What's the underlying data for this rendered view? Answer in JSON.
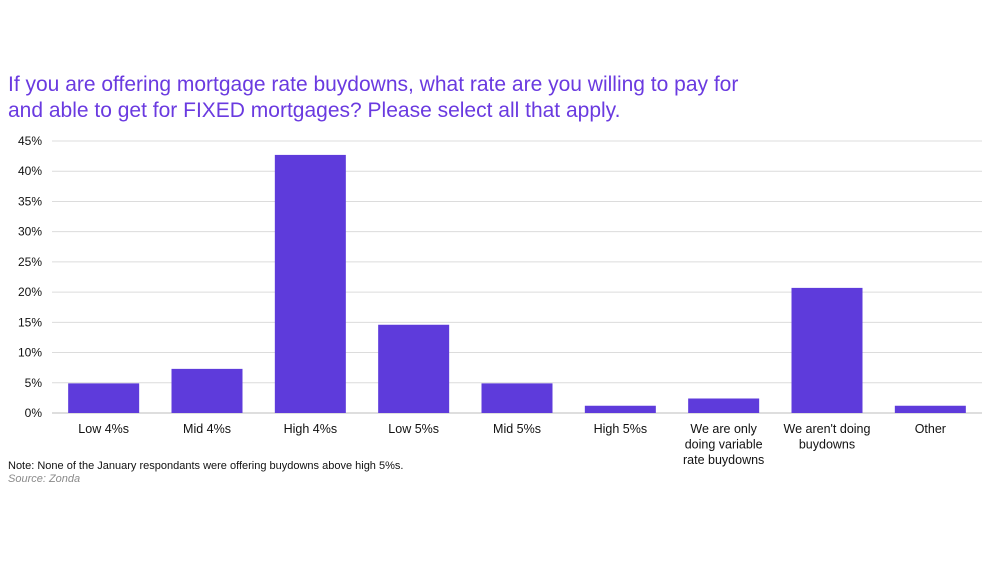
{
  "chart_data": {
    "type": "bar",
    "title_lines": [
      "If you are offering mortgage rate buydowns, what rate are you willing to pay for",
      "and able to get for FIXED  mortgages? Please select all that apply."
    ],
    "categories": [
      [
        "Low 4%s"
      ],
      [
        "Mid 4%s"
      ],
      [
        "High 4%s"
      ],
      [
        "Low 5%s"
      ],
      [
        "Mid 5%s"
      ],
      [
        "High 5%s"
      ],
      [
        "We are only",
        "doing variable",
        "rate buydowns"
      ],
      [
        "We aren't doing",
        "buydowns"
      ],
      [
        "Other"
      ]
    ],
    "values": [
      4.9,
      7.3,
      42.7,
      14.6,
      4.9,
      1.2,
      2.4,
      20.7,
      1.2
    ],
    "yticks": [
      "0%",
      "5%",
      "10%",
      "15%",
      "20%",
      "25%",
      "30%",
      "35%",
      "40%",
      "45%"
    ],
    "ylim": [
      0,
      45
    ],
    "grid": true,
    "bar_color": "#5e3bdb"
  },
  "note": "Note: None of the January respondants were offering buydowns above high 5%s.",
  "source": "Source: Zonda"
}
